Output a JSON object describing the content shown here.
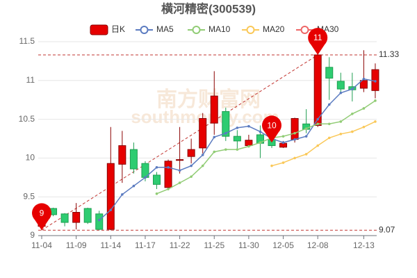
{
  "chart_data": {
    "type": "candlestick",
    "title": "横河精密(300539)",
    "watermark": [
      "南方财富网",
      "southmoney.com"
    ],
    "categories": [
      "11-04",
      null,
      null,
      "11-09",
      null,
      null,
      "11-14",
      null,
      null,
      "11-17",
      null,
      null,
      "11-22",
      null,
      null,
      "11-25",
      null,
      null,
      "11-30",
      null,
      null,
      "12-05",
      null,
      null,
      "12-08",
      null,
      null,
      null,
      "12-13",
      null
    ],
    "candle_name": "日K",
    "up_color": "#e60000",
    "down_color": "#2ecc71",
    "open": [
      9.12,
      9.35,
      9.28,
      9.17,
      9.35,
      9.28,
      9.08,
      9.92,
      10.11,
      9.93,
      9.78,
      9.62,
      9.97,
      10.02,
      10.13,
      10.45,
      10.6,
      10.28,
      10.16,
      10.3,
      10.24,
      10.14,
      10.24,
      10.44,
      10.42,
      11.17,
      10.99,
      10.92,
      10.9,
      10.87
    ],
    "close": [
      9.3,
      9.27,
      9.17,
      9.3,
      9.17,
      9.08,
      9.93,
      10.16,
      9.86,
      9.75,
      9.66,
      9.96,
      9.98,
      10.11,
      10.51,
      10.8,
      10.28,
      10.22,
      10.23,
      10.19,
      10.16,
      10.19,
      10.51,
      10.37,
      11.33,
      11.03,
      10.89,
      10.88,
      11.0,
      11.14
    ],
    "high": [
      9.33,
      9.36,
      9.29,
      9.42,
      9.36,
      9.32,
      10.4,
      10.35,
      10.2,
      9.96,
      9.82,
      9.98,
      10.4,
      10.25,
      10.58,
      11.12,
      10.65,
      10.36,
      10.3,
      10.42,
      10.3,
      10.22,
      10.52,
      10.63,
      11.4,
      11.3,
      11.1,
      11.1,
      11.39,
      11.22
    ],
    "low": [
      9.07,
      9.25,
      9.12,
      9.08,
      9.15,
      9.07,
      9.07,
      9.68,
      9.8,
      9.7,
      9.6,
      9.6,
      9.8,
      9.93,
      10.06,
      10.3,
      10.22,
      10.1,
      10.14,
      10.0,
      10.13,
      10.13,
      10.2,
      10.32,
      10.4,
      10.75,
      10.85,
      10.73,
      10.85,
      10.77
    ],
    "series": [
      {
        "name": "MA5",
        "color": "#5b7bc0",
        "values": [
          null,
          null,
          null,
          null,
          null,
          9.2,
          9.33,
          9.53,
          9.64,
          9.75,
          9.88,
          9.88,
          9.84,
          9.9,
          10.04,
          10.27,
          10.32,
          10.39,
          10.41,
          10.34,
          10.25,
          10.2,
          10.24,
          10.28,
          10.5,
          10.69,
          10.84,
          10.89,
          11.02,
          10.99
        ]
      },
      {
        "name": "MA10",
        "color": "#91cc75",
        "values": [
          null,
          null,
          null,
          null,
          null,
          null,
          null,
          null,
          null,
          null,
          9.54,
          9.6,
          9.68,
          9.76,
          9.9,
          10.08,
          10.11,
          10.11,
          10.15,
          10.2,
          10.26,
          10.28,
          10.32,
          10.38,
          10.44,
          10.44,
          10.47,
          10.57,
          10.64,
          10.74
        ]
      },
      {
        "name": "MA20",
        "color": "#fac858",
        "values": [
          null,
          null,
          null,
          null,
          null,
          null,
          null,
          null,
          null,
          null,
          null,
          null,
          null,
          null,
          null,
          null,
          null,
          null,
          null,
          null,
          9.9,
          9.94,
          10.0,
          10.05,
          10.16,
          10.26,
          10.31,
          10.34,
          10.4,
          10.47
        ]
      },
      {
        "name": "MA30",
        "color": "#ee6666",
        "values": [
          null,
          null,
          null,
          null,
          null,
          null,
          null,
          null,
          null,
          null,
          null,
          null,
          null,
          null,
          null,
          null,
          null,
          null,
          null,
          null,
          null,
          null,
          null,
          null,
          null,
          null,
          null,
          null,
          null,
          null
        ]
      }
    ],
    "ylim": [
      9,
      11.5
    ],
    "yticks": [
      9,
      9.5,
      10,
      10.5,
      11,
      11.5
    ],
    "grid": true,
    "ref_lines": [
      11.33,
      9.07
    ],
    "ref_color": "#c23531",
    "pins": [
      {
        "label": "9",
        "index": 0,
        "value": 9.07
      },
      {
        "label": "10",
        "index": 20,
        "value": 10.2
      },
      {
        "label": "11",
        "index": 24,
        "value": 11.33
      }
    ]
  }
}
